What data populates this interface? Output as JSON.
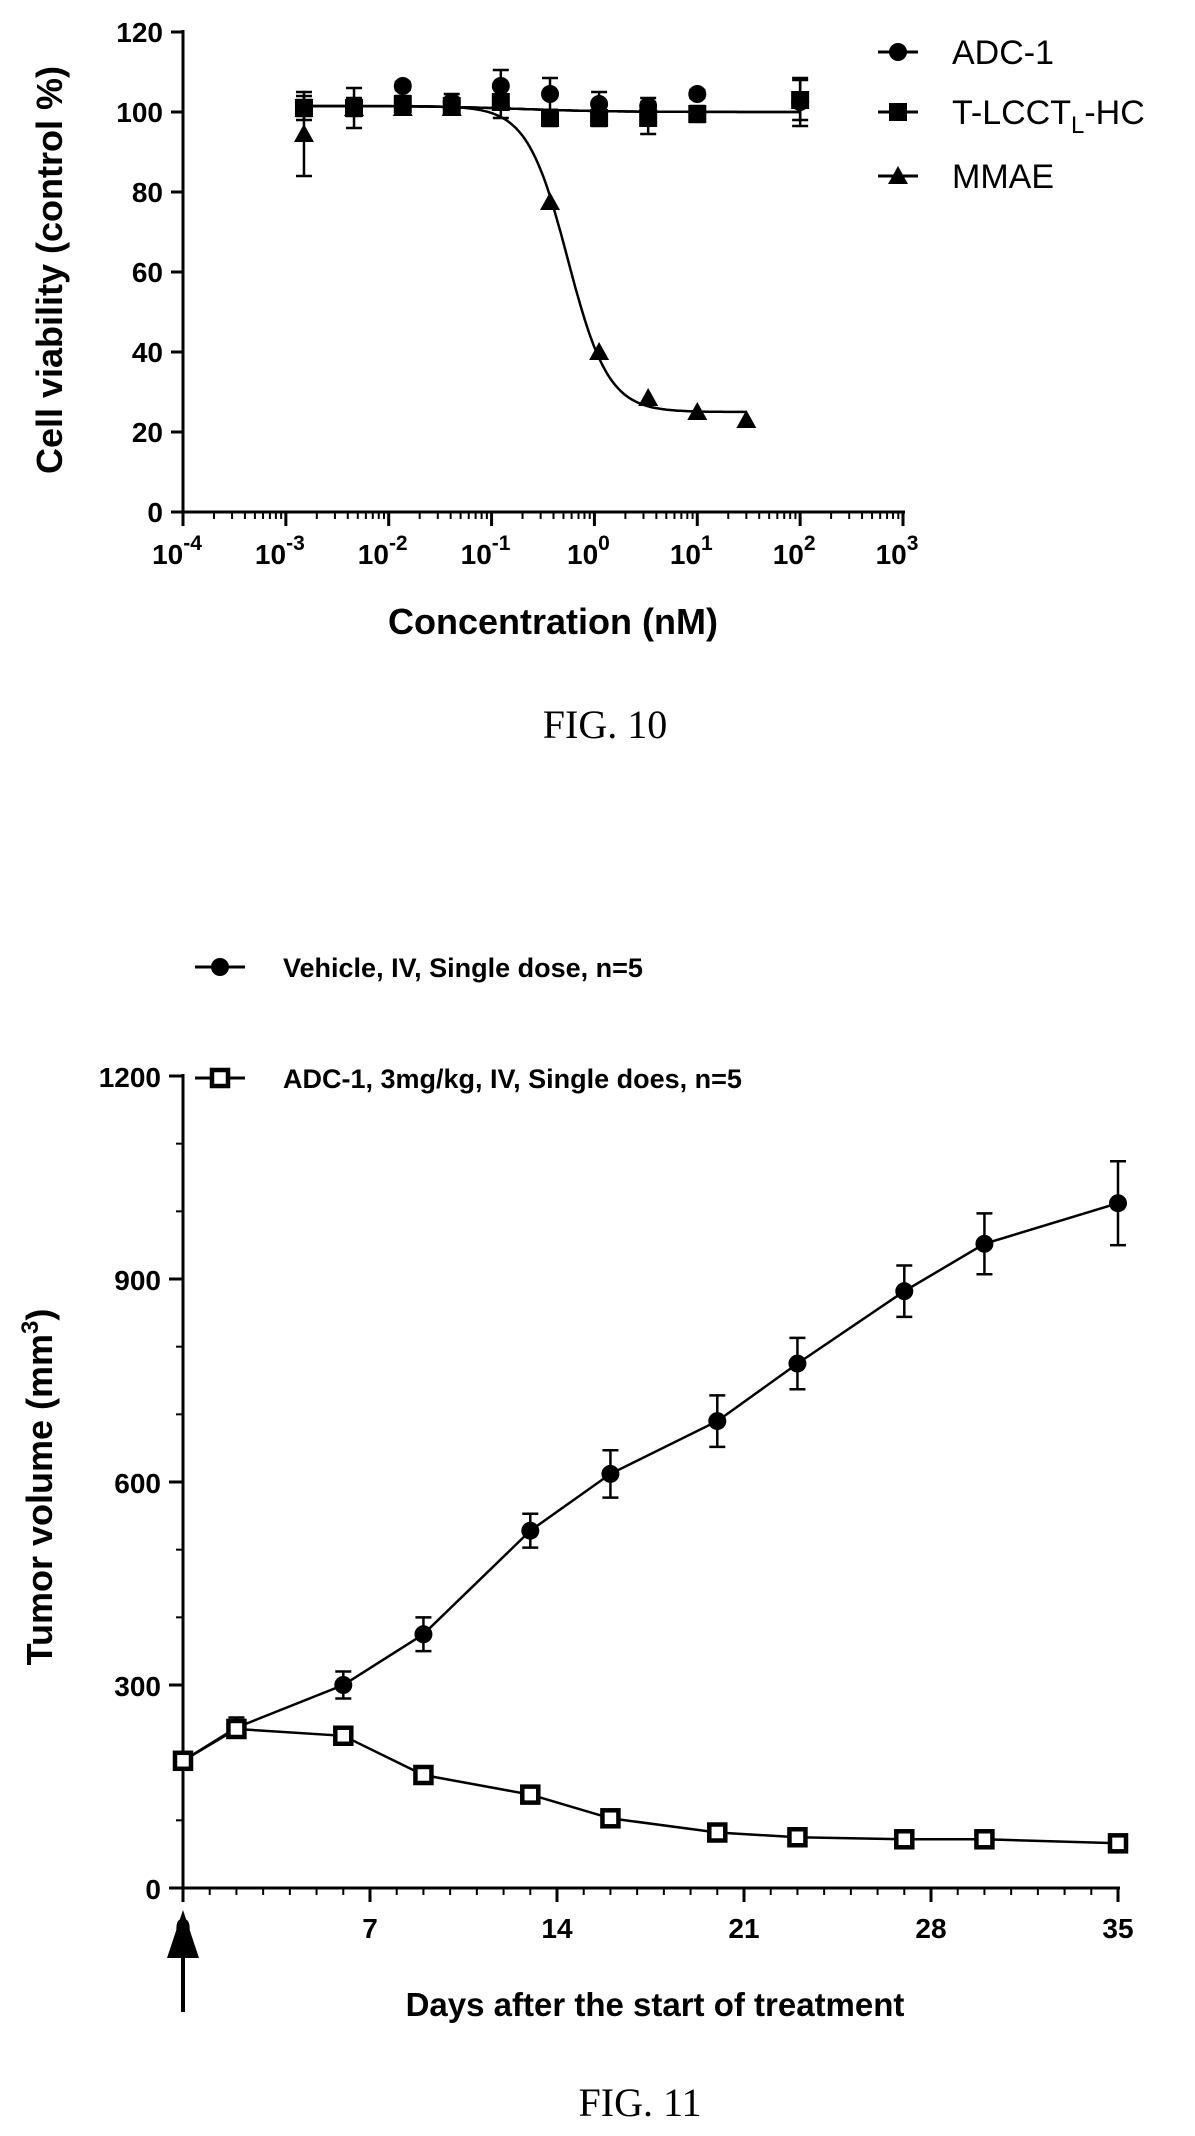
{
  "chart_data": [
    {
      "type": "scatter",
      "caption": "FIG. 10",
      "xlabel": "Concentration (nM)",
      "ylabel": "Cell viability (control %)",
      "xscale": "log",
      "xlim_exponent": [
        -4,
        3
      ],
      "x_ticks": [
        {
          "base": "10",
          "exp": "-4",
          "value": 0.0001
        },
        {
          "base": "10",
          "exp": "-3",
          "value": 0.001
        },
        {
          "base": "10",
          "exp": "-2",
          "value": 0.01
        },
        {
          "base": "10",
          "exp": "-1",
          "value": 0.1
        },
        {
          "base": "10",
          "exp": "0",
          "value": 1
        },
        {
          "base": "10",
          "exp": "1",
          "value": 10
        },
        {
          "base": "10",
          "exp": "2",
          "value": 100
        },
        {
          "base": "10",
          "exp": "3",
          "value": 1000
        }
      ],
      "ylim": [
        0,
        120
      ],
      "y_ticks": [
        "0",
        "20",
        "40",
        "60",
        "80",
        "100",
        "120"
      ],
      "legend_position": "top-right",
      "series": [
        {
          "name": "ADC-1",
          "marker": "circle",
          "x": [
            0.0015,
            0.0046,
            0.0137,
            0.041,
            0.123,
            0.37,
            1.11,
            3.33,
            10,
            100
          ],
          "y": [
            101,
            101.5,
            106.5,
            102.5,
            106.5,
            104.5,
            102,
            101.5,
            104.5,
            102.5
          ],
          "err": [
            2,
            2,
            1,
            2,
            4,
            4,
            3,
            2,
            1,
            6
          ],
          "fit": {
            "top": 101.5,
            "bottom": 100,
            "ec50": 0.2,
            "hill": 1
          }
        },
        {
          "name_parts": [
            "T-LCCT",
            "L",
            "-HC"
          ],
          "marker": "square",
          "x": [
            0.0015,
            0.0046,
            0.0137,
            0.041,
            0.123,
            0.37,
            1.11,
            3.33,
            10,
            100
          ],
          "y": [
            101,
            101,
            102,
            101.5,
            102.5,
            98.5,
            98.5,
            98.5,
            99.5,
            103
          ],
          "err": [
            3,
            5,
            2,
            2,
            4,
            2,
            2,
            4,
            2,
            5
          ],
          "fit": {
            "top": 101.5,
            "bottom": 100,
            "ec50": 0.2,
            "hill": 1
          }
        },
        {
          "name": "MMAE",
          "marker": "triangle",
          "x": [
            0.0015,
            0.0046,
            0.0137,
            0.041,
            0.123,
            0.37,
            1.11,
            3.33,
            10,
            30
          ],
          "y": [
            94.5,
            101,
            101,
            101,
            103,
            77.5,
            40,
            28.5,
            25,
            23
          ],
          "err": [
            10.5,
            2,
            1,
            1,
            1,
            0,
            0,
            0,
            0,
            0
          ],
          "fit": {
            "top": 101.5,
            "bottom": 25,
            "ec50": 0.55,
            "hill": 2.2
          }
        }
      ]
    },
    {
      "type": "line",
      "caption": "FIG. 11",
      "xlabel": "Days after the start of treatment",
      "ylabel_base": "Tumor volume (mm",
      "ylabel_sup": "3",
      "ylabel_end": ")",
      "xlim": [
        0,
        35
      ],
      "x_ticks": [
        "0",
        "7",
        "14",
        "21",
        "28",
        "35"
      ],
      "ylim": [
        0,
        1200
      ],
      "y_ticks": [
        "0",
        "300",
        "600",
        "900",
        "1200"
      ],
      "legend_position": "top-left",
      "annotation": "arrow at day 0 (dosing)",
      "series": [
        {
          "name": "Vehicle, IV, Single dose, n=5",
          "marker": "filled-circle",
          "x": [
            0,
            2,
            6,
            9,
            13,
            16,
            20,
            23,
            27,
            30,
            35
          ],
          "y": [
            188,
            237,
            300,
            375,
            528,
            612,
            690,
            775,
            882,
            952,
            1012
          ],
          "err": [
            10,
            15,
            20,
            25,
            25,
            35,
            38,
            38,
            38,
            45,
            62
          ]
        },
        {
          "name": "ADC-1, 3mg/kg, IV, Single does, n=5",
          "marker": "open-square",
          "x": [
            0,
            2,
            6,
            9,
            13,
            16,
            20,
            23,
            27,
            30,
            35
          ],
          "y": [
            188,
            235,
            225,
            167,
            138,
            103,
            82,
            75,
            72,
            72,
            66
          ],
          "err": [
            10,
            12,
            12,
            10,
            10,
            8,
            6,
            5,
            5,
            5,
            5
          ]
        }
      ]
    }
  ]
}
